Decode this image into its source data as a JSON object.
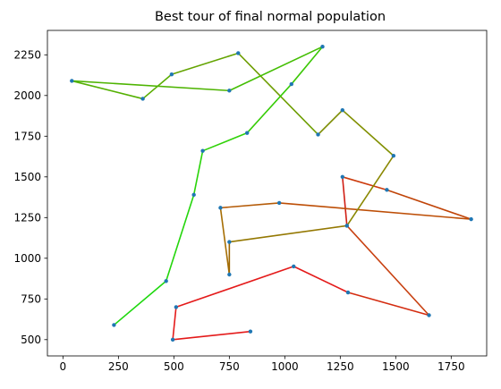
{
  "chart_data": {
    "type": "line",
    "title": "Best tour of final normal population",
    "xlabel": "",
    "ylabel": "",
    "xlim": [
      -70,
      1910
    ],
    "ylim": [
      400,
      2400
    ],
    "xticks": [
      0,
      250,
      500,
      750,
      1000,
      1250,
      1500,
      1750
    ],
    "yticks": [
      500,
      750,
      1000,
      1250,
      1500,
      1750,
      2000,
      2250
    ],
    "xtick_labels": [
      "0",
      "250",
      "500",
      "750",
      "1000",
      "1250",
      "1500",
      "1750"
    ],
    "ytick_labels": [
      "500",
      "750",
      "1000",
      "1250",
      "1500",
      "1750",
      "2000",
      "2250"
    ],
    "grid": false,
    "legend": "none",
    "point_color": "#1f77b4",
    "tour": [
      {
        "x": 845,
        "y": 550
      },
      {
        "x": 495,
        "y": 500
      },
      {
        "x": 510,
        "y": 700
      },
      {
        "x": 1040,
        "y": 950
      },
      {
        "x": 1285,
        "y": 790
      },
      {
        "x": 1650,
        "y": 650
      },
      {
        "x": 1280,
        "y": 1200
      },
      {
        "x": 1260,
        "y": 1500
      },
      {
        "x": 1460,
        "y": 1420
      },
      {
        "x": 1840,
        "y": 1240
      },
      {
        "x": 975,
        "y": 1340
      },
      {
        "x": 710,
        "y": 1310
      },
      {
        "x": 750,
        "y": 900
      },
      {
        "x": 750,
        "y": 1100
      },
      {
        "x": 1280,
        "y": 1200
      },
      {
        "x": 1490,
        "y": 1630
      },
      {
        "x": 1260,
        "y": 1910
      },
      {
        "x": 1150,
        "y": 1760
      },
      {
        "x": 790,
        "y": 2260
      },
      {
        "x": 490,
        "y": 2130
      },
      {
        "x": 360,
        "y": 1980
      },
      {
        "x": 40,
        "y": 2090
      },
      {
        "x": 750,
        "y": 2030
      },
      {
        "x": 1170,
        "y": 2300
      },
      {
        "x": 1030,
        "y": 2070
      },
      {
        "x": 830,
        "y": 1770
      },
      {
        "x": 630,
        "y": 1660
      },
      {
        "x": 590,
        "y": 1390
      },
      {
        "x": 465,
        "y": 860
      },
      {
        "x": 230,
        "y": 590
      }
    ],
    "segment_colors": [
      "#e41a1a",
      "#e41a1a",
      "#e41a1a",
      "#e41a1a",
      "#d42c10",
      "#c84010",
      "#d01e14",
      "#cc3a0c",
      "#c04408",
      "#bd4e06",
      "#b45a06",
      "#a66e04",
      "#9c6602",
      "#947802",
      "#8a8802",
      "#829002",
      "#7c8c02",
      "#6e9e02",
      "#64a402",
      "#5aae02",
      "#54b002",
      "#4eb402",
      "#44be04",
      "#3cc806",
      "#36cc06",
      "#30d208",
      "#2ad40a",
      "#24d60c",
      "#1ed80e"
    ]
  }
}
